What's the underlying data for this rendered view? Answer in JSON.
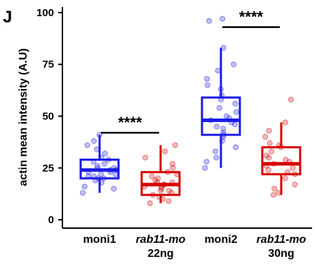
{
  "panel_letter": "J",
  "chart_data": {
    "type": "box",
    "ylabel": "actin mean intensity (A.U)",
    "ylim": [
      -3,
      102
    ],
    "yticks": [
      0,
      25,
      50,
      75,
      100
    ],
    "categories": [
      {
        "line1": "moni1",
        "line2": "",
        "italic": false,
        "color": "#1a1ae6"
      },
      {
        "line1": "rab11-mo",
        "line2": "22ng",
        "italic": true,
        "color": "#d60000"
      },
      {
        "line1": "moni2",
        "line2": "",
        "italic": false,
        "color": "#1a1ae6"
      },
      {
        "line1": "rab11-mo",
        "line2": "30ng",
        "italic": true,
        "color": "#d60000"
      }
    ],
    "boxes": [
      {
        "q1": 20,
        "median": 24,
        "q3": 29,
        "whisker_low": 13,
        "whisker_high": 41
      },
      {
        "q1": 12,
        "median": 17,
        "q3": 23,
        "whisker_low": 8,
        "whisker_high": 36
      },
      {
        "q1": 41,
        "median": 48,
        "q3": 59,
        "whisker_low": 25,
        "whisker_high": 83
      },
      {
        "q1": 22,
        "median": 27,
        "q3": 35,
        "whisker_low": 12,
        "whisker_high": 47
      }
    ],
    "points": [
      [
        13,
        15,
        16,
        18,
        19,
        20,
        20,
        21,
        21,
        22,
        22,
        23,
        23,
        24,
        24,
        25,
        25,
        26,
        27,
        28,
        29,
        30,
        32,
        34,
        36,
        38,
        41
      ],
      [
        8,
        9,
        10,
        11,
        12,
        13,
        14,
        14,
        15,
        16,
        16,
        17,
        17,
        18,
        18,
        19,
        20,
        21,
        22,
        23,
        25,
        27,
        30,
        33,
        36
      ],
      [
        25,
        28,
        30,
        33,
        35,
        38,
        40,
        41,
        42,
        44,
        45,
        46,
        47,
        48,
        49,
        50,
        52,
        54,
        56,
        58,
        60,
        63,
        65,
        68,
        72,
        75,
        83,
        96,
        97
      ],
      [
        12,
        13,
        15,
        17,
        20,
        22,
        23,
        24,
        25,
        26,
        27,
        28,
        29,
        30,
        31,
        33,
        35,
        36,
        37,
        40,
        43,
        47,
        58
      ]
    ],
    "significance": [
      {
        "label": "****",
        "from": 0,
        "to": 1,
        "y": 42
      },
      {
        "label": "****",
        "from": 2,
        "to": 3,
        "y": 93
      }
    ]
  }
}
